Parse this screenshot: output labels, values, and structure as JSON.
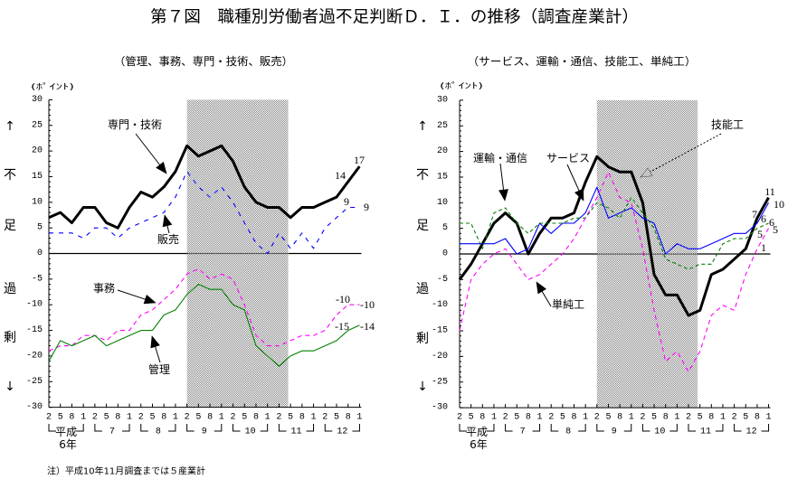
{
  "title": "第７図　職種別労働者過不足判断Ｄ．Ｉ．の推移（調査産業計）",
  "note": "注）平成10年11月調査までは５産業計",
  "side_labels": [
    "↑",
    "不",
    "足",
    "過",
    "剰",
    "↓"
  ],
  "colors": {
    "black": "#000000",
    "blue": "#0000ff",
    "magenta": "#ff00ff",
    "green": "#008000",
    "shading": "#c4c4c4"
  },
  "chart_data": [
    {
      "type": "line",
      "title": "（管理、事務、専門・技術、販売）",
      "ylabel": "(ﾎﾟｲﾝﾄ)",
      "xlabel": "",
      "ylim": [
        -30,
        30
      ],
      "yticks": [
        30,
        25,
        20,
        15,
        10,
        5,
        0,
        -5,
        -10,
        -15,
        -20,
        -25,
        -30
      ],
      "grid": false,
      "x_month_labels": [
        "2",
        "5",
        "8",
        "1",
        "2",
        "5",
        "8",
        "1",
        "2",
        "5",
        "8",
        "1",
        "2",
        "5",
        "8",
        "1",
        "2",
        "5",
        "8",
        "1",
        "2",
        "5",
        "8",
        "1",
        "2",
        "5",
        "8",
        "1"
      ],
      "year_groups": [
        {
          "label": "平成",
          "sub": "6年"
        },
        {
          "label": "7"
        },
        {
          "label": "8"
        },
        {
          "label": "9"
        },
        {
          "label": "10"
        },
        {
          "label": "11"
        },
        {
          "label": "12"
        }
      ],
      "shaded_range": [
        12,
        20.8
      ],
      "reference_line": 0,
      "series": [
        {
          "name": "専門・技術",
          "color": "#000000",
          "values": [
            7,
            8,
            6,
            9,
            9,
            6,
            5,
            9,
            12,
            11,
            13,
            16,
            21,
            19,
            20,
            21,
            18,
            13,
            10,
            9,
            9,
            7,
            9,
            9,
            10,
            11,
            14,
            17
          ],
          "end_labels": [
            "14",
            "17"
          ]
        },
        {
          "name": "販売",
          "color": "#0000ff",
          "values": [
            4,
            4,
            4,
            3,
            5,
            5,
            3,
            5,
            6,
            7,
            8,
            11,
            16,
            13,
            11,
            13,
            10,
            6,
            2,
            0,
            4,
            1,
            4,
            1,
            5,
            7,
            9,
            9
          ],
          "end_labels": [
            "9",
            "9"
          ]
        },
        {
          "name": "事務",
          "color": "#ff00ff",
          "values": [
            -19,
            -18,
            -18,
            -16,
            -16,
            -17,
            -15,
            -15,
            -12,
            -11,
            -9,
            -7,
            -4,
            -3,
            -5,
            -4,
            -5,
            -10,
            -16,
            -18,
            -18,
            -17,
            -16,
            -16,
            -15,
            -12,
            -10,
            -10
          ],
          "end_labels": [
            "-10",
            "-10"
          ]
        },
        {
          "name": "管理",
          "color": "#008000",
          "values": [
            -21,
            -17,
            -18,
            -17,
            -16,
            -18,
            -17,
            -16,
            -15,
            -15,
            -12,
            -11,
            -8,
            -6,
            -7,
            -7,
            -10,
            -11,
            -18,
            -20,
            -22,
            -20,
            -19,
            -19,
            -18,
            -17,
            -15,
            -14
          ],
          "end_labels": [
            "-15",
            "-14"
          ]
        }
      ]
    },
    {
      "type": "line",
      "title": "（サービス、運輸・通信、技能工、単純工）",
      "ylabel": "(ﾎﾟｲﾝﾄ)",
      "xlabel": "",
      "ylim": [
        -30,
        30
      ],
      "yticks": [
        30,
        25,
        20,
        15,
        10,
        5,
        0,
        -5,
        -10,
        -15,
        -20,
        -25,
        -30
      ],
      "grid": false,
      "x_month_labels": [
        "2",
        "5",
        "8",
        "1",
        "2",
        "5",
        "8",
        "1",
        "2",
        "5",
        "8",
        "1",
        "2",
        "5",
        "8",
        "1",
        "2",
        "5",
        "8",
        "1",
        "2",
        "5",
        "8",
        "1",
        "2",
        "5",
        "8",
        "1"
      ],
      "year_groups": [
        {
          "label": "平成",
          "sub": "6年"
        },
        {
          "label": "7"
        },
        {
          "label": "8"
        },
        {
          "label": "9"
        },
        {
          "label": "10"
        },
        {
          "label": "11"
        },
        {
          "label": "12"
        }
      ],
      "shaded_range": [
        12,
        20.8
      ],
      "reference_line": 0,
      "series": [
        {
          "name": "技能工",
          "color": "#000000",
          "values": [
            -5,
            -2,
            2,
            6,
            8,
            6,
            0,
            4,
            7,
            7,
            8,
            14,
            19,
            17,
            16,
            16,
            10,
            -4,
            -8,
            -8,
            -12,
            -11,
            -4,
            -3,
            -1,
            1,
            7,
            11
          ],
          "end_labels": [
            "7",
            "11"
          ]
        },
        {
          "name": "サービス",
          "color": "#0000ff",
          "values": [
            2,
            2,
            2,
            2,
            3,
            0,
            1,
            6,
            4,
            6,
            6,
            8,
            13,
            7,
            8,
            9,
            7,
            6,
            0,
            2,
            1,
            1,
            2,
            3,
            4,
            4,
            6,
            10
          ],
          "end_labels": [
            "6",
            "10"
          ]
        },
        {
          "name": "運輸・通信",
          "color": "#008000",
          "values": [
            6,
            6,
            1,
            8,
            9,
            6,
            4,
            6,
            6,
            6,
            7,
            7,
            10,
            9,
            7,
            11,
            8,
            5,
            -1,
            -2,
            -3,
            -2,
            -2,
            2,
            3,
            3,
            5,
            6
          ],
          "end_labels": [
            "5",
            "6"
          ]
        },
        {
          "name": "単純工",
          "color": "#ff00ff",
          "values": [
            -15,
            -5,
            -2,
            0,
            1,
            -2,
            -5,
            -4,
            -2,
            0,
            3,
            7,
            11,
            16,
            11,
            10,
            1,
            -11,
            -21,
            -19,
            -23,
            -19,
            -12,
            -10,
            -11,
            -4,
            1,
            5
          ],
          "end_labels": [
            "1",
            "5"
          ]
        }
      ]
    }
  ]
}
